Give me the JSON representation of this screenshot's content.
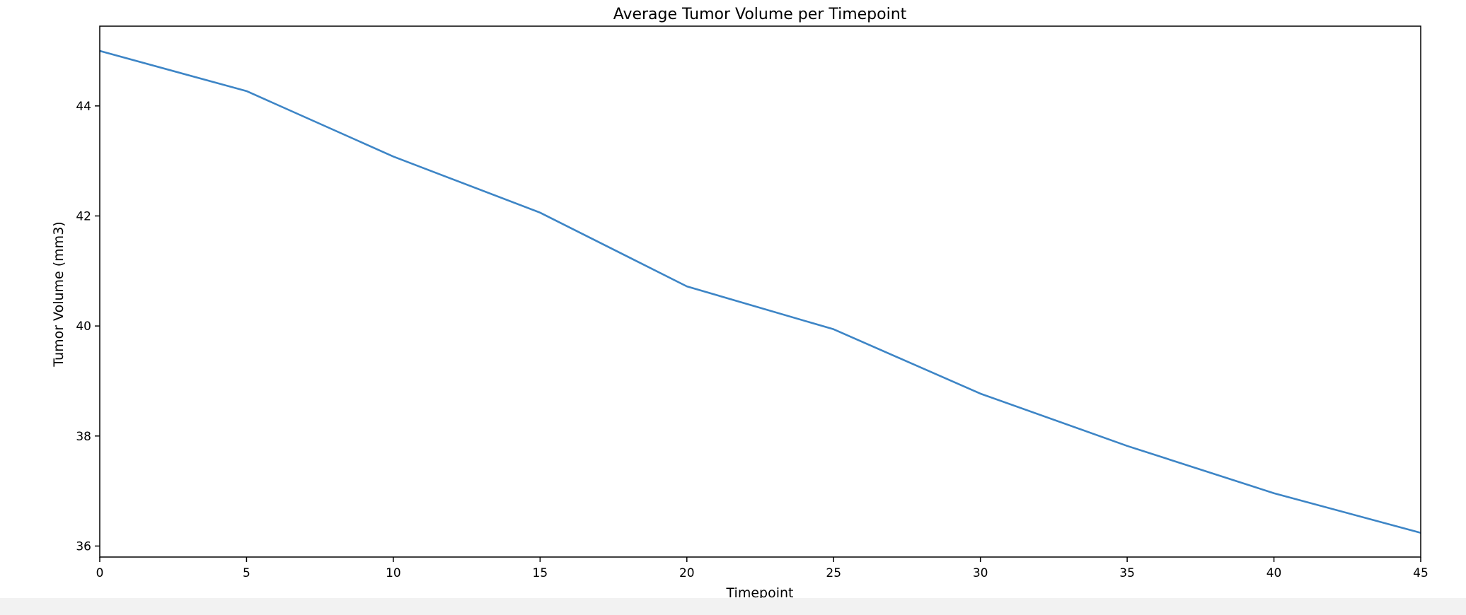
{
  "chart_data": {
    "type": "line",
    "title": "Average Tumor Volume per Timepoint",
    "xlabel": "Timepoint",
    "ylabel": "Tumor Volume (mm3)",
    "xlim": [
      0,
      45
    ],
    "ylim": [
      35.8,
      45.45
    ],
    "xticks": [
      0,
      5,
      10,
      15,
      20,
      25,
      30,
      35,
      40,
      45
    ],
    "yticks": [
      36,
      38,
      40,
      42,
      44
    ],
    "grid": false,
    "legend": "none",
    "series": [
      {
        "color": "#3d85c6",
        "x": [
          0,
          5,
          10,
          15,
          20,
          25,
          30,
          35,
          40,
          45
        ],
        "y": [
          45.0,
          44.27,
          43.08,
          42.06,
          40.72,
          39.94,
          38.77,
          37.82,
          36.96,
          36.24
        ]
      }
    ]
  }
}
